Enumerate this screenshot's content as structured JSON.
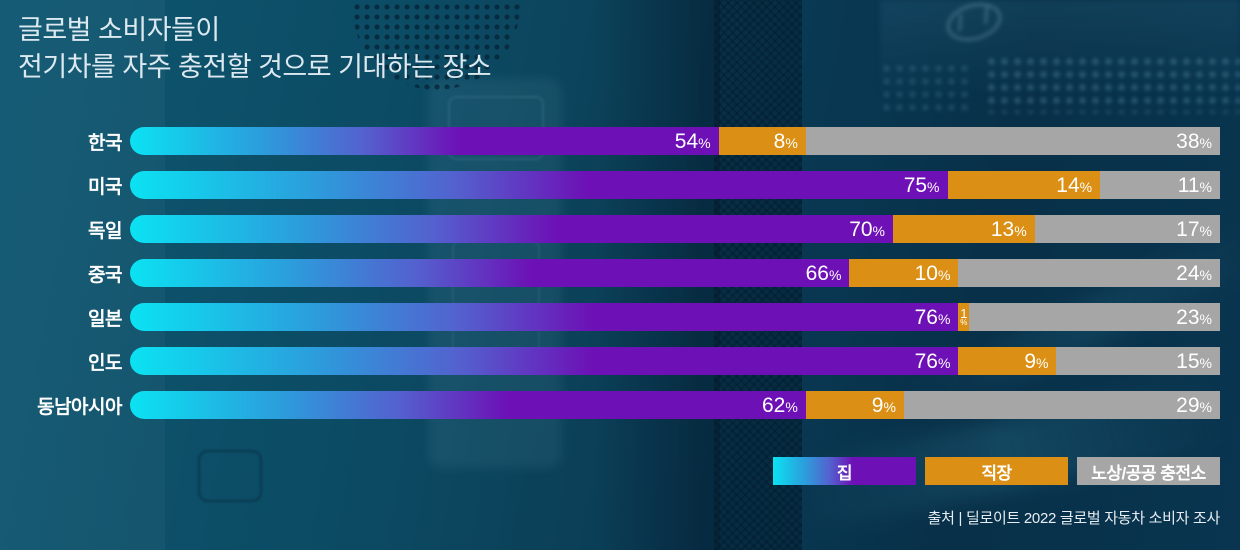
{
  "title": {
    "line1": "글로벌 소비자들이",
    "line2": "전기차를 자주 충전할 것으로 기대하는 장소"
  },
  "chart_data": {
    "type": "bar",
    "stacked": true,
    "orientation": "horizontal",
    "title": "글로벌 소비자들이 전기차를 자주 충전할 것으로 기대하는 장소",
    "categories": [
      "한국",
      "미국",
      "독일",
      "중국",
      "일본",
      "인도",
      "동남아시아"
    ],
    "series": [
      {
        "name": "집",
        "values": [
          54,
          75,
          70,
          66,
          76,
          76,
          62
        ],
        "gradient": [
          "#0be2f2",
          "#2b9edc",
          "#5460ce",
          "#6d10b5"
        ]
      },
      {
        "name": "직장",
        "values": [
          8,
          14,
          13,
          10,
          1,
          9,
          9
        ],
        "color": "#db9015"
      },
      {
        "name": "노상/공공 충전소",
        "values": [
          38,
          11,
          17,
          24,
          23,
          15,
          29
        ],
        "color": "#a6a6a6"
      }
    ],
    "value_suffix": "%",
    "xlim": [
      0,
      100
    ],
    "grid": false,
    "legend_position": "bottom-right"
  },
  "legend": {
    "items": [
      {
        "label": "집"
      },
      {
        "label": "직장"
      },
      {
        "label": "노상/공공 충전소"
      }
    ]
  },
  "source": "출처 | 딜로이트 2022 글로벌 자동차 소비자 조사",
  "colors": {
    "background_teal": "#0c4a63",
    "background_navy": "#083048",
    "bar_home_start": "#0be2f2",
    "bar_home_end": "#6d10b5",
    "bar_work": "#db9015",
    "bar_public": "#a6a6a6",
    "text": "#ffffff",
    "title_text": "#dde9f0"
  }
}
